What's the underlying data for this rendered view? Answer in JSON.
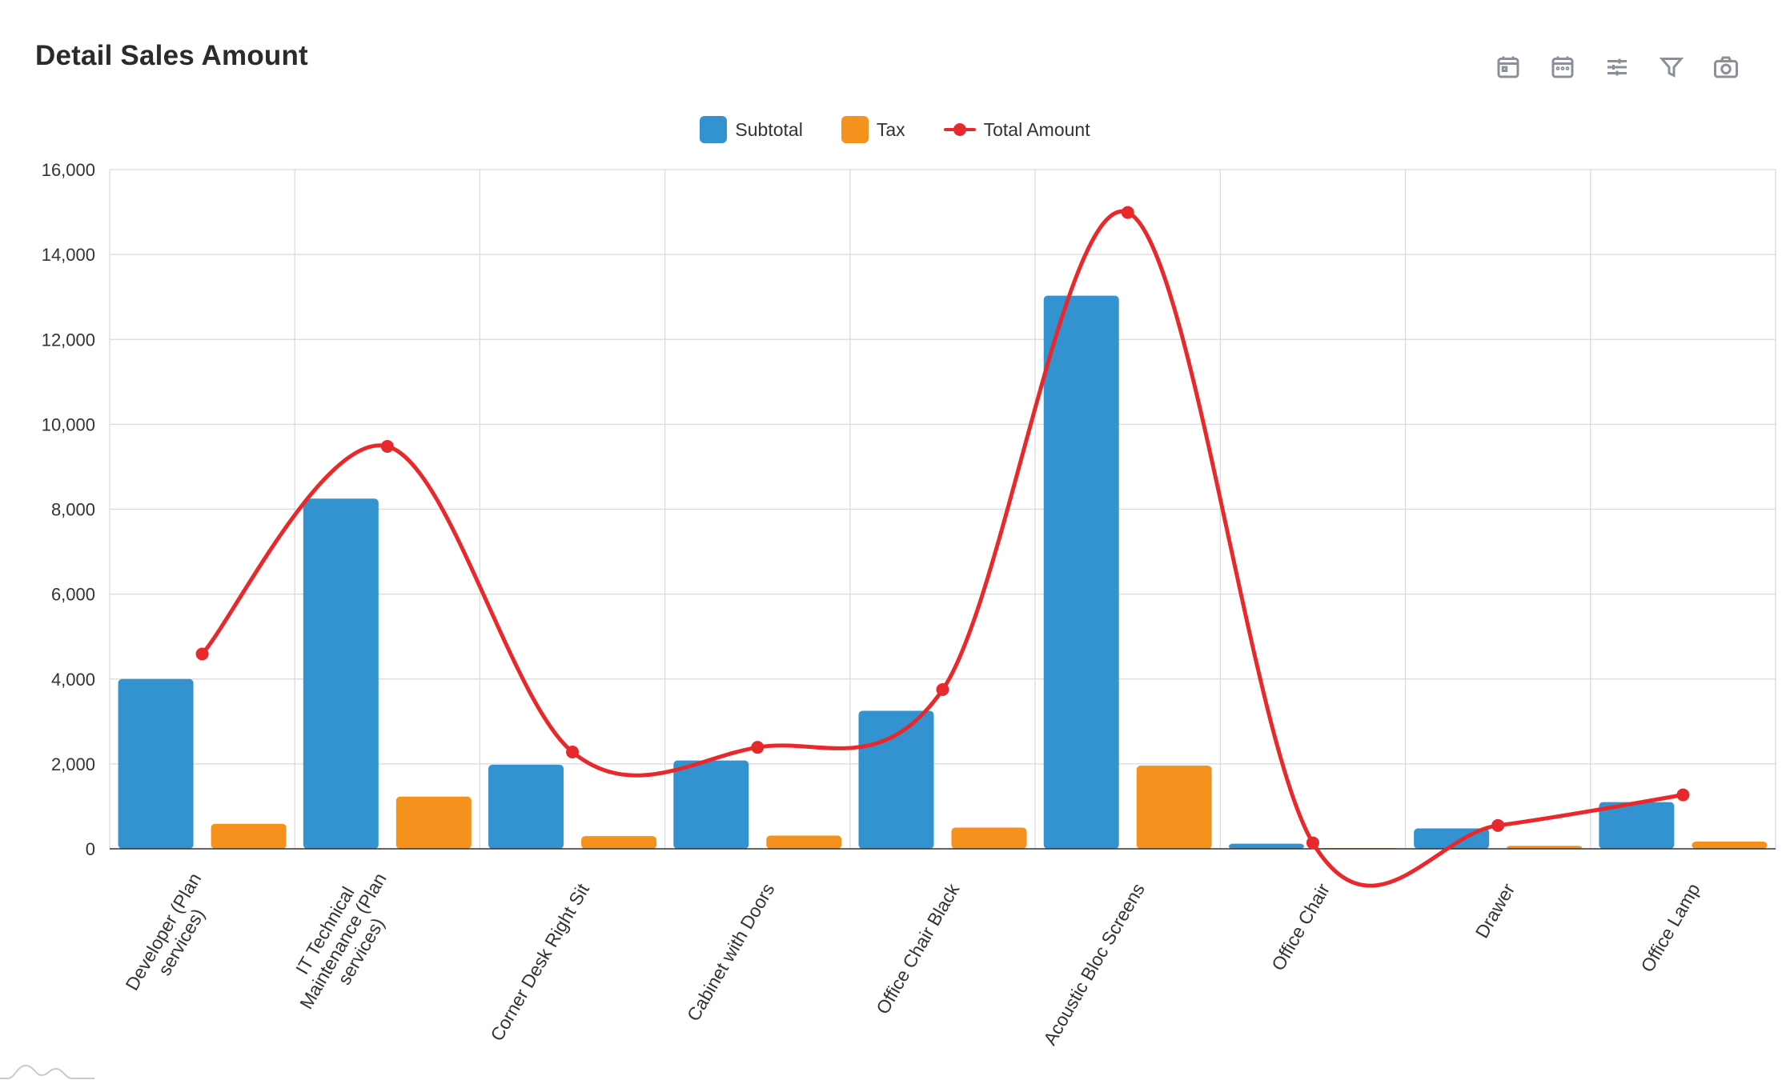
{
  "header": {
    "title": "Detail Sales Amount",
    "tools": [
      {
        "name": "calendar-day-icon"
      },
      {
        "name": "calendar-icon"
      },
      {
        "name": "sliders-icon"
      },
      {
        "name": "filter-icon"
      },
      {
        "name": "camera-icon"
      }
    ]
  },
  "colors": {
    "subtotal": "#3393d0",
    "tax": "#f5921e",
    "total": "#e8292c",
    "grid": "#d9d9de",
    "axis": "#333333"
  },
  "chart_data": {
    "type": "bar",
    "title": "Detail Sales Amount",
    "categories": [
      "Developer (Plan services)",
      "IT Technical Maintenance (Plan services)",
      "Corner Desk Right Sit",
      "Cabinet with Doors",
      "Office Chair Black",
      "Acoustic Bloc Screens",
      "Office Chair",
      "Drawer",
      "Office Lamp"
    ],
    "category_lines": [
      [
        "Developer (Plan",
        "services)"
      ],
      [
        "IT Technical",
        "Maintenance (Plan",
        "services)"
      ],
      [
        "Corner Desk Right Sit"
      ],
      [
        "Cabinet with Doors"
      ],
      [
        "Office Chair Black"
      ],
      [
        "Acoustic Bloc Screens"
      ],
      [
        "Office Chair"
      ],
      [
        "Drawer"
      ],
      [
        "Office Lamp"
      ]
    ],
    "series": [
      {
        "name": "Subtotal",
        "type": "bar",
        "values": [
          4000,
          8250,
          1980,
          2080,
          3250,
          13030,
          120,
          480,
          1100
        ]
      },
      {
        "name": "Tax",
        "type": "bar",
        "values": [
          590,
          1230,
          300,
          310,
          500,
          1960,
          20,
          70,
          170
        ]
      },
      {
        "name": "Total Amount",
        "type": "line",
        "values": [
          4590,
          9480,
          2280,
          2390,
          3750,
          14990,
          140,
          550,
          1270
        ]
      }
    ],
    "ylim": [
      0,
      16000
    ],
    "yticks": [
      0,
      2000,
      4000,
      6000,
      8000,
      10000,
      12000,
      14000,
      16000
    ],
    "ytick_labels": [
      "0",
      "2,000",
      "4,000",
      "6,000",
      "8,000",
      "10,000",
      "12,000",
      "14,000",
      "16,000"
    ],
    "legend_position": "top-center",
    "grid": true
  }
}
